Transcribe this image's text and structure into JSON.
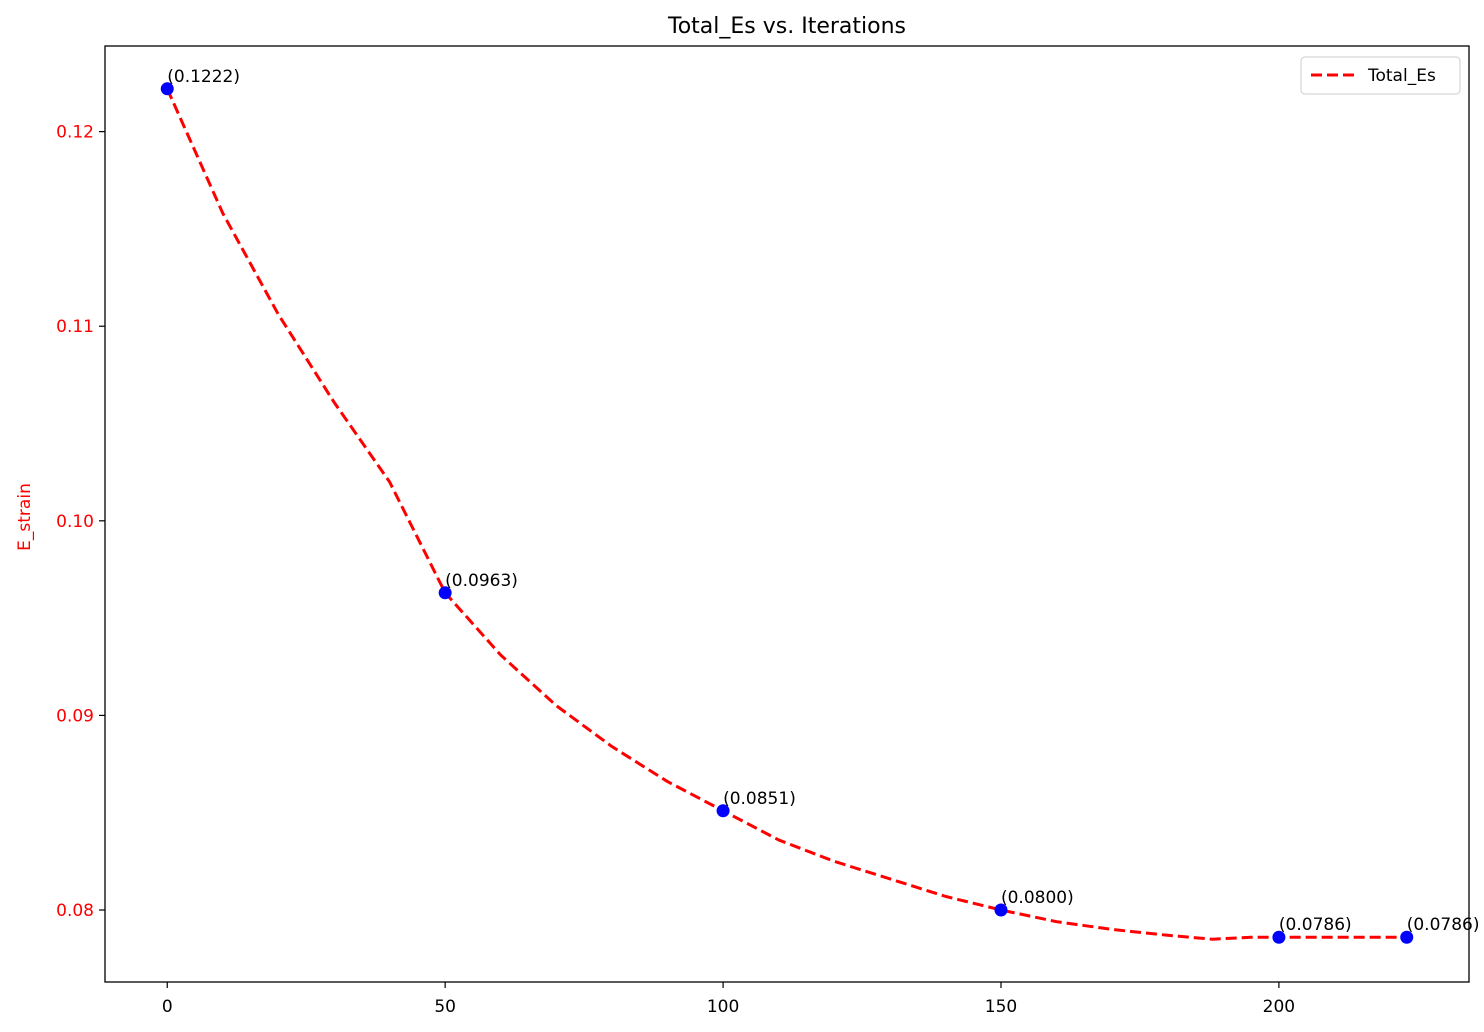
{
  "chart_data": {
    "type": "line",
    "title": "Total_Es vs. Iterations",
    "xlabel": "",
    "ylabel": "E_strain",
    "xlim": [
      -11.2,
      234.2
    ],
    "ylim": [
      0.0763,
      0.1244
    ],
    "x_ticks": [
      0,
      50,
      100,
      150,
      200
    ],
    "y_ticks": [
      0.08,
      0.09,
      0.1,
      0.11,
      0.12
    ],
    "y_tick_labels": [
      "0.08",
      "0.09",
      "0.10",
      "0.11",
      "0.12"
    ],
    "grid": false,
    "legend_position": "top-right",
    "series": [
      {
        "name": "Total_Es",
        "line_color": "#ff0000",
        "line_style": "dashed",
        "x": [
          0,
          10,
          20,
          30,
          40,
          50,
          60,
          70,
          80,
          90,
          100,
          110,
          120,
          130,
          140,
          150,
          160,
          170,
          180,
          188,
          195,
          200,
          210,
          223
        ],
        "y": [
          0.1222,
          0.1158,
          0.1106,
          0.1061,
          0.102,
          0.0963,
          0.0931,
          0.0905,
          0.0884,
          0.0866,
          0.0851,
          0.0836,
          0.0825,
          0.0816,
          0.0807,
          0.08,
          0.0794,
          0.079,
          0.0787,
          0.0785,
          0.0786,
          0.0786,
          0.0786,
          0.0786
        ]
      }
    ],
    "markers": {
      "color": "#0000ff",
      "points": [
        {
          "x": 0,
          "y": 0.1222,
          "label": "(0.1222)"
        },
        {
          "x": 50,
          "y": 0.0963,
          "label": "(0.0963)"
        },
        {
          "x": 100,
          "y": 0.0851,
          "label": "(0.0851)"
        },
        {
          "x": 150,
          "y": 0.08,
          "label": "(0.0800)"
        },
        {
          "x": 200,
          "y": 0.0786,
          "label": "(0.0786)"
        },
        {
          "x": 223,
          "y": 0.0786,
          "label": "(0.0786)"
        }
      ]
    },
    "y_axis_color": "#ff0000"
  }
}
